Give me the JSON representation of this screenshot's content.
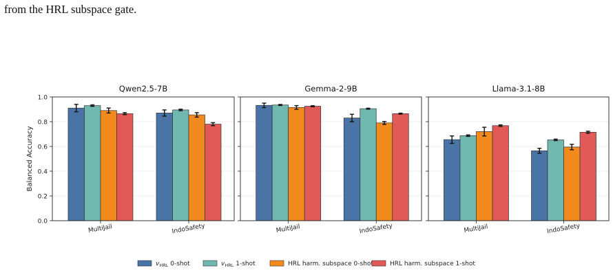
{
  "caption": "from the HRL subspace gate.",
  "colors": {
    "vhrl_0shot": "#4a74a6",
    "vhrl_1shot": "#70b8b0",
    "hrl_0shot": "#f28a1e",
    "hrl_1shot": "#e25a57"
  },
  "legend": [
    {
      "name": "v",
      "sub": "HRL",
      "rest": " 0-shot",
      "color_key": "vhrl_0shot"
    },
    {
      "name": "v",
      "sub": "HRL",
      "rest": " 1-shot",
      "color_key": "vhrl_1shot"
    },
    {
      "name": "HRL harm. subspace 0-shot",
      "sub": "",
      "rest": "",
      "color_key": "hrl_0shot"
    },
    {
      "name": "HRL harm. subspace 1-shot",
      "sub": "",
      "rest": "",
      "color_key": "hrl_1shot"
    }
  ],
  "chart_data": [
    {
      "type": "bar",
      "title": "Qwen2.5-7B",
      "ylabel": "Balanced Accuracy",
      "ylim": [
        0,
        1.0
      ],
      "yticks": [
        "0.0",
        "0.2",
        "0.4",
        "0.6",
        "0.8",
        "1.0"
      ],
      "categories": [
        "MultiJail",
        "IndoSafety"
      ],
      "series": [
        {
          "color_key": "vhrl_0shot",
          "values": [
            0.91,
            0.87
          ],
          "errors": [
            0.03,
            0.025
          ]
        },
        {
          "color_key": "vhrl_1shot",
          "values": [
            0.93,
            0.895
          ],
          "errors": [
            0.006,
            0.006
          ]
        },
        {
          "color_key": "hrl_0shot",
          "values": [
            0.89,
            0.855
          ],
          "errors": [
            0.02,
            0.018
          ]
        },
        {
          "color_key": "hrl_1shot",
          "values": [
            0.865,
            0.78
          ],
          "errors": [
            0.008,
            0.012
          ]
        }
      ],
      "grid": true
    },
    {
      "type": "bar",
      "title": "Gemma-2-9B",
      "ylabel": "",
      "ylim": [
        0,
        1.0
      ],
      "yticks": [],
      "categories": [
        "MultiJail",
        "IndoSafety"
      ],
      "series": [
        {
          "color_key": "vhrl_0shot",
          "values": [
            0.932,
            0.83
          ],
          "errors": [
            0.018,
            0.03
          ]
        },
        {
          "color_key": "vhrl_1shot",
          "values": [
            0.935,
            0.905
          ],
          "errors": [
            0.004,
            0.004
          ]
        },
        {
          "color_key": "hrl_0shot",
          "values": [
            0.915,
            0.79
          ],
          "errors": [
            0.015,
            0.012
          ]
        },
        {
          "color_key": "hrl_1shot",
          "values": [
            0.925,
            0.865
          ],
          "errors": [
            0.004,
            0.004
          ]
        }
      ],
      "grid": true
    },
    {
      "type": "bar",
      "title": "Llama-3.1-8B",
      "ylabel": "",
      "ylim": [
        0,
        1.0
      ],
      "yticks": [],
      "categories": [
        "MultiJail",
        "IndoSafety"
      ],
      "series": [
        {
          "color_key": "vhrl_0shot",
          "values": [
            0.655,
            0.565
          ],
          "errors": [
            0.03,
            0.02
          ]
        },
        {
          "color_key": "vhrl_1shot",
          "values": [
            0.687,
            0.653
          ],
          "errors": [
            0.006,
            0.006
          ]
        },
        {
          "color_key": "hrl_0shot",
          "values": [
            0.72,
            0.595
          ],
          "errors": [
            0.035,
            0.022
          ]
        },
        {
          "color_key": "hrl_1shot",
          "values": [
            0.768,
            0.715
          ],
          "errors": [
            0.006,
            0.008
          ]
        }
      ],
      "grid": true
    }
  ]
}
